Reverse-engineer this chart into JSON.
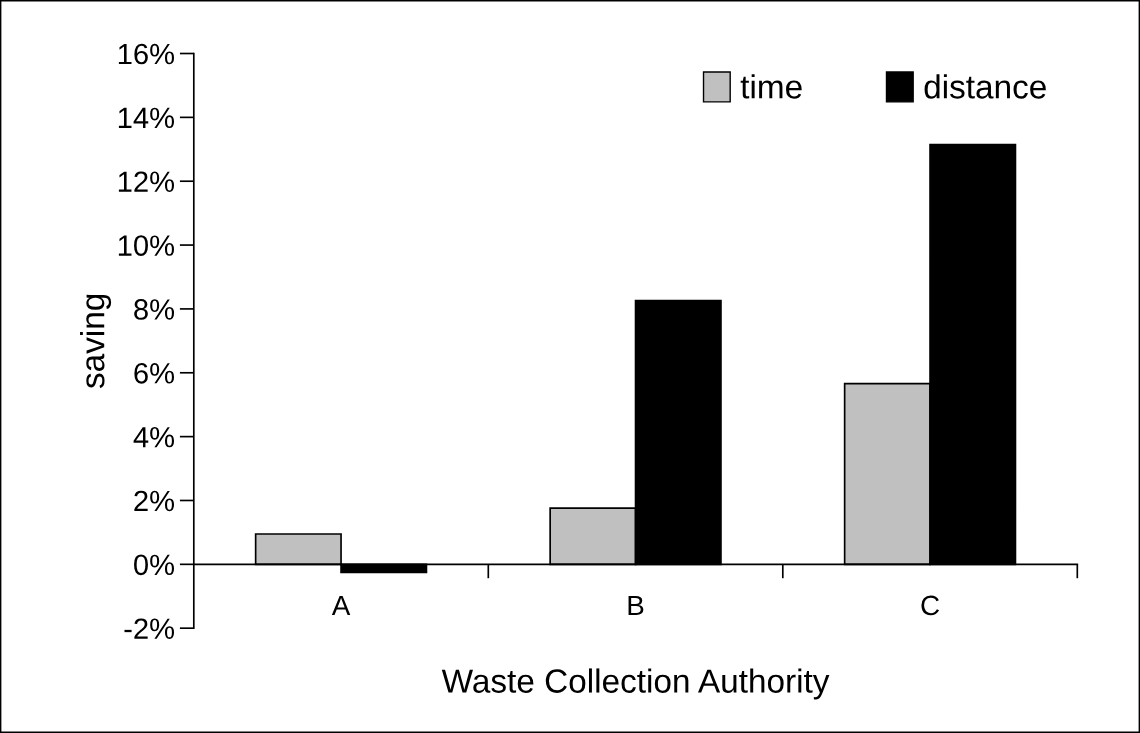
{
  "chart_data": {
    "type": "bar",
    "xlabel": "Waste Collection Authority",
    "ylabel": "saving",
    "categories": [
      "A",
      "B",
      "C"
    ],
    "series": [
      {
        "name": "time",
        "color": "#c0c0c0",
        "values": [
          0.95,
          1.76,
          5.66
        ]
      },
      {
        "name": "distance",
        "color": "#000000",
        "values": [
          -0.25,
          8.26,
          13.15
        ]
      }
    ],
    "ylim": [
      -2,
      16
    ],
    "yticks": [
      {
        "value": -2,
        "label": "-2%"
      },
      {
        "value": 0,
        "label": "0%"
      },
      {
        "value": 2,
        "label": "2%"
      },
      {
        "value": 4,
        "label": "4%"
      },
      {
        "value": 6,
        "label": "6%"
      },
      {
        "value": 8,
        "label": "8%"
      },
      {
        "value": 10,
        "label": "10%"
      },
      {
        "value": 12,
        "label": "12%"
      },
      {
        "value": 14,
        "label": "14%"
      },
      {
        "value": 16,
        "label": "16%"
      }
    ],
    "grid": false,
    "legend": "top right"
  }
}
